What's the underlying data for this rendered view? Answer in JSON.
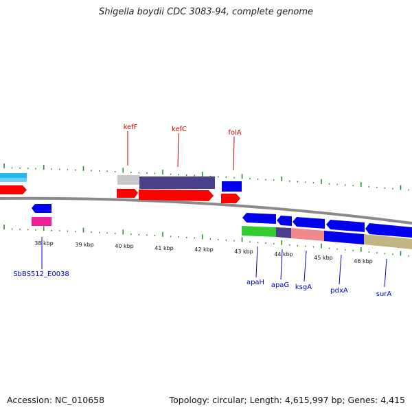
{
  "title": "Shigella boydii CDC 3083-94, complete genome",
  "accession_label": "Accession: NC_010658",
  "summary_label": "Topology: circular; Length: 4,615,997 bp; Genes: 4,415",
  "colors": {
    "backbone": "#8a8a8a",
    "tick": "#2e8b2e",
    "red_feature": "#ff0000",
    "blue_feature": "#0000ee",
    "cyan_feature": "#22b8ee",
    "magenta_feature": "#ee1d9a",
    "purple_feature": "#4a3f8c",
    "grey_feature": "#c8c8c8",
    "green_feature": "#33cc33",
    "salmon_feature": "#f08a8a",
    "khaki_feature": "#c0b583",
    "upper_label_color": "#cc0000",
    "lower_label_color": "#0000cc"
  },
  "scale": {
    "tick_labels": [
      "38 kbp",
      "39 kbp",
      "40 kbp",
      "41 kbp",
      "42 kbp",
      "43 kbp",
      "44 kbp",
      "45 kbp",
      "46 kbp"
    ]
  },
  "genes_upper": [
    {
      "name": "kefF"
    },
    {
      "name": "kefC"
    },
    {
      "name": "folA"
    }
  ],
  "genes_lower": [
    {
      "name": "SbBS512_E0038"
    },
    {
      "name": "apaH"
    },
    {
      "name": "apaG"
    },
    {
      "name": "ksgA"
    },
    {
      "name": "pdxA"
    },
    {
      "name": "surA"
    }
  ]
}
